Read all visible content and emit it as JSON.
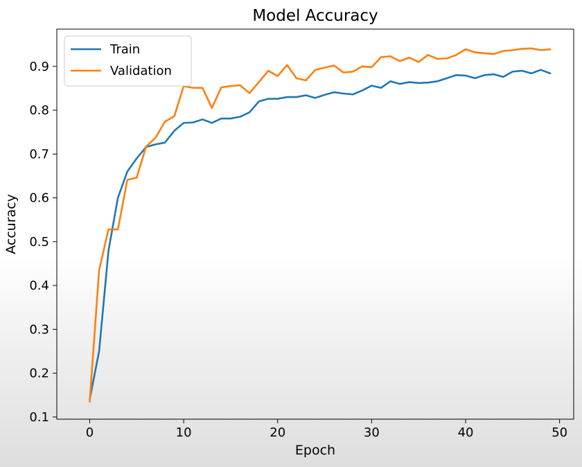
{
  "chart_data": {
    "type": "line",
    "title": "Model Accuracy",
    "xlabel": "Epoch",
    "ylabel": "Accuracy",
    "xlim": [
      -3.5,
      51.5
    ],
    "ylim": [
      0.095,
      0.985
    ],
    "xticks": [
      0,
      10,
      20,
      30,
      40,
      50
    ],
    "xtick_labels": [
      "0",
      "10",
      "20",
      "30",
      "40",
      "50"
    ],
    "yticks": [
      0.1,
      0.2,
      0.3,
      0.4,
      0.5,
      0.6,
      0.7,
      0.8,
      0.9
    ],
    "ytick_labels": [
      "0.1",
      "0.2",
      "0.3",
      "0.4",
      "0.5",
      "0.6",
      "0.7",
      "0.8",
      "0.9"
    ],
    "grid": false,
    "legend_position": "upper-left",
    "x": [
      0,
      1,
      2,
      3,
      4,
      5,
      6,
      7,
      8,
      9,
      10,
      11,
      12,
      13,
      14,
      15,
      16,
      17,
      18,
      19,
      20,
      21,
      22,
      23,
      24,
      25,
      26,
      27,
      28,
      29,
      30,
      31,
      32,
      33,
      34,
      35,
      36,
      37,
      38,
      39,
      40,
      41,
      42,
      43,
      44,
      45,
      46,
      47,
      48,
      49
    ],
    "series": [
      {
        "name": "Train",
        "color": "#1f77b4",
        "values": [
          0.14,
          0.25,
          0.48,
          0.6,
          0.66,
          0.69,
          0.716,
          0.722,
          0.726,
          0.753,
          0.771,
          0.772,
          0.779,
          0.771,
          0.781,
          0.781,
          0.785,
          0.795,
          0.82,
          0.826,
          0.826,
          0.83,
          0.83,
          0.834,
          0.828,
          0.835,
          0.841,
          0.838,
          0.836,
          0.845,
          0.856,
          0.851,
          0.866,
          0.86,
          0.864,
          0.862,
          0.863,
          0.866,
          0.873,
          0.88,
          0.879,
          0.873,
          0.88,
          0.882,
          0.876,
          0.888,
          0.89,
          0.884,
          0.892,
          0.884
        ]
      },
      {
        "name": "Validation",
        "color": "#ff7f0e",
        "values": [
          0.135,
          0.435,
          0.528,
          0.528,
          0.641,
          0.646,
          0.717,
          0.737,
          0.774,
          0.786,
          0.855,
          0.851,
          0.851,
          0.805,
          0.852,
          0.855,
          0.857,
          0.839,
          0.864,
          0.89,
          0.878,
          0.903,
          0.873,
          0.868,
          0.892,
          0.897,
          0.902,
          0.886,
          0.888,
          0.9,
          0.898,
          0.921,
          0.923,
          0.912,
          0.92,
          0.91,
          0.926,
          0.917,
          0.918,
          0.926,
          0.939,
          0.932,
          0.93,
          0.928,
          0.935,
          0.937,
          0.94,
          0.941,
          0.937,
          0.939
        ]
      }
    ]
  }
}
